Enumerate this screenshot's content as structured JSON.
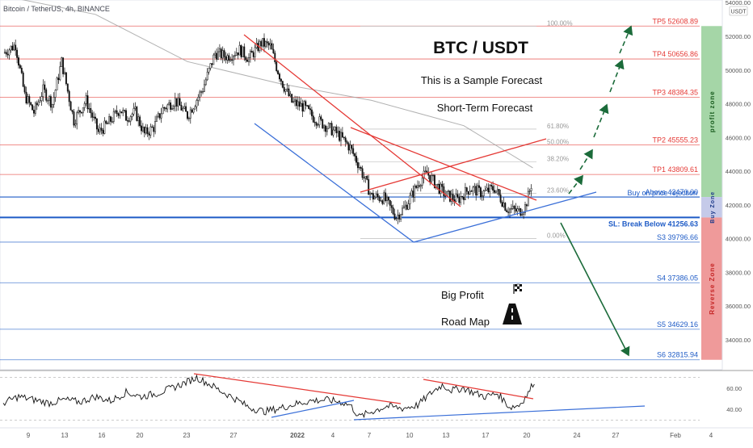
{
  "header": {
    "title": "Bitcoin / TetherUS, 4h, BINANCE",
    "currency": "USDT"
  },
  "annotations": {
    "headline": "BTC / USDT",
    "subtitle1": "This is a Sample Forecast",
    "subtitle2": "Short-Term Forecast",
    "big_profit": "Big Profit",
    "road_map": "Road Map"
  },
  "zones": {
    "profit": {
      "label": "profit zone",
      "color": "#a5d6a7",
      "from": 42470,
      "to": 52608.89
    },
    "buy": {
      "label": "Buy Zone",
      "color": "#c5cae9",
      "from": 41256.63,
      "to": 42470
    },
    "reverse": {
      "label": "Reverse Zone",
      "color": "#ef9a9a",
      "from": 32815.94,
      "to": 41256.63
    }
  },
  "levels": [
    {
      "label": "TP5 52608.89",
      "value": 52608.89,
      "color": "#e53935"
    },
    {
      "label": "TP4 50656.86",
      "value": 50656.86,
      "color": "#e53935"
    },
    {
      "label": "TP3 48384.35",
      "value": 48384.35,
      "color": "#e53935"
    },
    {
      "label": "TP2 45555.23",
      "value": 45555.23,
      "color": "#e53935"
    },
    {
      "label": "TP1 43809.61",
      "value": 43809.61,
      "color": "#e53935"
    },
    {
      "label": "Above 42470.00",
      "value": 42470,
      "color": "#1e5bc6"
    },
    {
      "label": "SL: Break Below 41256.63",
      "value": 41256.63,
      "color": "#1e5bc6"
    },
    {
      "label": "S3 39796.66",
      "value": 39796.66,
      "color": "#1e5bc6"
    },
    {
      "label": "S4 37386.05",
      "value": 37386.05,
      "color": "#1e5bc6"
    },
    {
      "label": "S5 34629.16",
      "value": 34629.16,
      "color": "#1e5bc6"
    },
    {
      "label": "S6 32815.94",
      "value": 32815.94,
      "color": "#1e5bc6"
    }
  ],
  "buy_note": "Buy on price rejection",
  "fib": [
    {
      "label": "100.00%",
      "value": 52608.89
    },
    {
      "label": "61.80%",
      "value": 46500
    },
    {
      "label": "50.00%",
      "value": 45555.23
    },
    {
      "label": "38.20%",
      "value": 44550
    },
    {
      "label": "23.60%",
      "value": 42700
    },
    {
      "label": "0.00%",
      "value": 40000
    }
  ],
  "chart_data": {
    "type": "candlestick",
    "y_ticks": [
      "54000.00",
      "52000.00",
      "50000.00",
      "48000.00",
      "46000.00",
      "44000.00",
      "42000.00",
      "40000.00",
      "38000.00",
      "36000.00",
      "34000.00"
    ],
    "y_range": [
      32000,
      54400
    ],
    "x_ticks": [
      "9",
      "13",
      "16",
      "20",
      "23",
      "27",
      "2022",
      "4",
      "7",
      "10",
      "13",
      "17",
      "20",
      "24",
      "27",
      "Feb",
      "4"
    ],
    "price_path": [
      [
        0,
        51000
      ],
      [
        8,
        51500
      ],
      [
        14,
        48500
      ],
      [
        20,
        47500
      ],
      [
        26,
        48800
      ],
      [
        32,
        48000
      ],
      [
        38,
        50500
      ],
      [
        46,
        47000
      ],
      [
        54,
        48200
      ],
      [
        62,
        46300
      ],
      [
        68,
        46800
      ],
      [
        76,
        47700
      ],
      [
        80,
        47200
      ],
      [
        86,
        47500
      ],
      [
        92,
        46200
      ],
      [
        98,
        46600
      ],
      [
        104,
        47700
      ],
      [
        112,
        48200
      ],
      [
        120,
        47300
      ],
      [
        130,
        48900
      ],
      [
        138,
        51000
      ],
      [
        146,
        50800
      ],
      [
        154,
        51200
      ],
      [
        160,
        50700
      ],
      [
        168,
        51600
      ],
      [
        174,
        51400
      ],
      [
        178,
        50200
      ],
      [
        182,
        49200
      ],
      [
        188,
        48100
      ],
      [
        196,
        47800
      ],
      [
        202,
        47200
      ],
      [
        210,
        46700
      ],
      [
        218,
        46200
      ],
      [
        226,
        45400
      ],
      [
        232,
        44300
      ],
      [
        240,
        42500
      ],
      [
        248,
        42400
      ],
      [
        256,
        41300
      ],
      [
        262,
        41900
      ],
      [
        268,
        42900
      ],
      [
        272,
        43500
      ],
      [
        276,
        43900
      ],
      [
        282,
        43200
      ],
      [
        288,
        42600
      ],
      [
        296,
        42300
      ],
      [
        304,
        43000
      ],
      [
        312,
        42700
      ],
      [
        320,
        43000
      ],
      [
        328,
        41800
      ],
      [
        336,
        41600
      ],
      [
        340,
        41900
      ],
      [
        342,
        42500
      ],
      [
        344,
        43200
      ]
    ],
    "ma_path": [
      [
        0,
        54400
      ],
      [
        60,
        53300
      ],
      [
        120,
        50500
      ],
      [
        180,
        49200
      ],
      [
        240,
        48200
      ],
      [
        300,
        46700
      ],
      [
        345,
        44200
      ]
    ],
    "series_mapping": "index positions 0-345 across the price panel",
    "rsi": {
      "y_ticks": [
        "60.00",
        "40.00"
      ],
      "y_range": [
        25,
        75
      ],
      "path": [
        [
          0,
          46
        ],
        [
          10,
          52
        ],
        [
          20,
          49
        ],
        [
          30,
          46
        ],
        [
          40,
          49
        ],
        [
          50,
          47
        ],
        [
          60,
          52
        ],
        [
          70,
          48
        ],
        [
          80,
          56
        ],
        [
          90,
          52
        ],
        [
          100,
          55
        ],
        [
          110,
          60
        ],
        [
          120,
          66
        ],
        [
          126,
          70
        ],
        [
          134,
          64
        ],
        [
          142,
          57
        ],
        [
          150,
          51
        ],
        [
          160,
          42
        ],
        [
          170,
          38
        ],
        [
          180,
          41
        ],
        [
          190,
          45
        ],
        [
          200,
          48
        ],
        [
          210,
          49
        ],
        [
          220,
          47
        ],
        [
          226,
          44
        ],
        [
          232,
          33
        ],
        [
          240,
          38
        ],
        [
          250,
          43
        ],
        [
          260,
          41
        ],
        [
          270,
          44
        ],
        [
          280,
          57
        ],
        [
          286,
          63
        ],
        [
          292,
          58
        ],
        [
          300,
          60
        ],
        [
          306,
          56
        ],
        [
          314,
          52
        ],
        [
          322,
          55
        ],
        [
          330,
          42
        ],
        [
          336,
          44
        ],
        [
          342,
          55
        ],
        [
          346,
          67
        ]
      ]
    }
  }
}
